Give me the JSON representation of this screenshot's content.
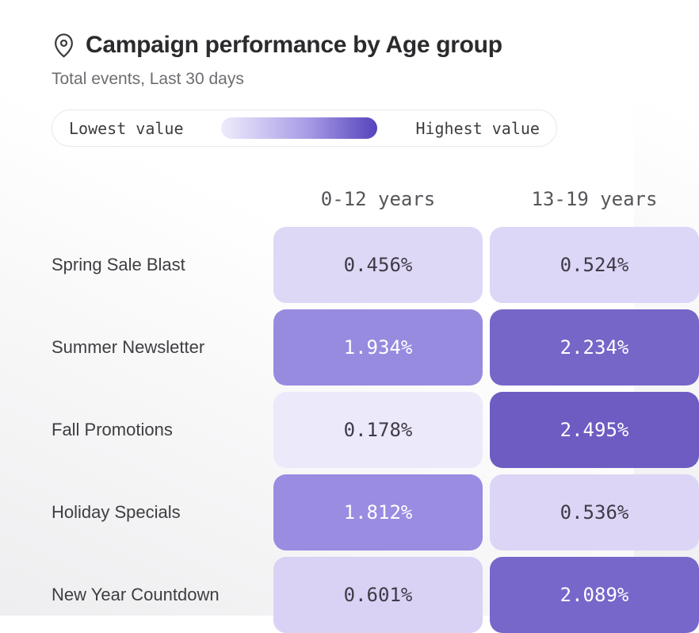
{
  "header": {
    "icon": "map-pin-icon",
    "title": "Campaign performance by Age group",
    "subtitle": "Total events, Last 30 days"
  },
  "legend": {
    "low_label": "Lowest value",
    "high_label": "Highest value",
    "gradient_start": "#efecfc",
    "gradient_mid": "#a99ce6",
    "gradient_end": "#5444bc"
  },
  "chart_data": {
    "type": "heatmap",
    "title": "Campaign performance by Age group",
    "subtitle": "Total events, Last 30 days",
    "unit": "%",
    "columns": [
      "0-12 years",
      "13-19 years"
    ],
    "rows": [
      "Spring Sale Blast",
      "Summer Newsletter",
      "Fall Promotions",
      "Holiday Specials",
      "New Year Countdown"
    ],
    "values": [
      [
        0.456,
        0.524
      ],
      [
        1.934,
        2.234
      ],
      [
        0.178,
        2.495
      ],
      [
        1.812,
        0.536
      ],
      [
        0.601,
        2.089
      ]
    ],
    "colorscale": {
      "min_color": "#efecfc",
      "max_color": "#5444bc"
    },
    "cells": [
      [
        {
          "value": "0.456%",
          "bg": "#ded8f7",
          "fg": "#403a47"
        },
        {
          "value": "0.524%",
          "bg": "#dcd6f7",
          "fg": "#403a47"
        }
      ],
      [
        {
          "value": "1.934%",
          "bg": "#978be0",
          "fg": "#ffffff"
        },
        {
          "value": "2.234%",
          "bg": "#7666c8",
          "fg": "#ffffff"
        }
      ],
      [
        {
          "value": "0.178%",
          "bg": "#ece9fb",
          "fg": "#403a47"
        },
        {
          "value": "2.495%",
          "bg": "#6e5cc3",
          "fg": "#ffffff"
        }
      ],
      [
        {
          "value": "1.812%",
          "bg": "#998ce1",
          "fg": "#ffffff"
        },
        {
          "value": "0.536%",
          "bg": "#dcd5f6",
          "fg": "#403a47"
        }
      ],
      [
        {
          "value": "0.601%",
          "bg": "#d9d2f5",
          "fg": "#403a47"
        },
        {
          "value": "2.089%",
          "bg": "#7767ca",
          "fg": "#ffffff"
        }
      ]
    ]
  }
}
